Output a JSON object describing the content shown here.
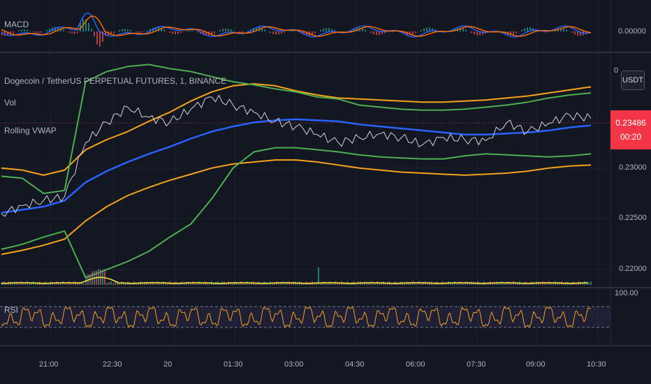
{
  "symbol_title": "Dogecoin / TetherUS PERPETUAL FUTURES, 1, BINANCE",
  "unit_button": "USDT",
  "macd_pane": {
    "label": "MACD",
    "value": "0.00000"
  },
  "price_scale_top_label": "0",
  "indicators": {
    "vol_label": "Vol",
    "vwap_label": "Rolling VWAP"
  },
  "price_tag": {
    "price": "0.23486",
    "countdown": "00:20"
  },
  "rsi_pane": {
    "label": "RSI",
    "top_value": "100.00"
  },
  "colors": {
    "background": "#131722",
    "grid": "#1e222d",
    "vwap": "#2962ff",
    "band_orange": "#f7a21b",
    "band_green": "#4caf50",
    "rsi": "#f7a21b",
    "macd_line": "#2962ff",
    "signal_line": "#ff6d00",
    "price_tag": "#f23645",
    "volume_line": "#ffeb3b"
  },
  "chart_data": {
    "type": "line",
    "title": "Dogecoin / TetherUS PERPETUAL FUTURES, 1, BINANCE",
    "xlabel": "",
    "ylabel": "",
    "x_ticks": [
      "21:00",
      "22:30",
      "20",
      "01:30",
      "03:00",
      "04:30",
      "06:00",
      "07:30",
      "09:00",
      "10:30"
    ],
    "y_ticks": [
      0.23,
      0.225,
      0.22
    ],
    "y_tick_labels": [
      "0.23000",
      "0.22500",
      "0.22000"
    ],
    "ylim": [
      0.2185,
      0.2405
    ],
    "x_sample_hours": [
      0,
      0.5,
      1,
      1.5,
      2,
      2.5,
      3,
      3.5,
      4,
      4.5,
      5,
      5.5,
      6,
      6.5,
      7,
      7.5,
      8,
      8.5,
      9,
      9.5,
      10,
      10.5,
      11,
      11.5,
      12,
      12.5,
      13,
      13.5,
      14
    ],
    "series": [
      {
        "name": "Rolling VWAP",
        "color": "#2962ff",
        "values": [
          0.2256,
          0.2259,
          0.2262,
          0.2268,
          0.2286,
          0.2297,
          0.2306,
          0.2314,
          0.2321,
          0.2329,
          0.2336,
          0.2341,
          0.2345,
          0.2347,
          0.2348,
          0.2347,
          0.2346,
          0.2343,
          0.2341,
          0.2339,
          0.2337,
          0.2335,
          0.2333,
          0.2333,
          0.2334,
          0.2335,
          0.2337,
          0.234,
          0.2342
        ]
      },
      {
        "color": "#f7a21b",
        "values": [
          0.23,
          0.2298,
          0.2293,
          0.2298,
          0.2318,
          0.2328,
          0.2336,
          0.2346,
          0.2355,
          0.2366,
          0.2375,
          0.2381,
          0.2383,
          0.2381,
          0.2376,
          0.2372,
          0.2369,
          0.2368,
          0.2367,
          0.2366,
          0.2365,
          0.2365,
          0.2366,
          0.2367,
          0.2369,
          0.2371,
          0.2374,
          0.2377,
          0.238
        ]
      },
      {
        "color": "#f7a21b",
        "values": [
          0.2215,
          0.2219,
          0.2224,
          0.223,
          0.2248,
          0.2262,
          0.2273,
          0.2281,
          0.2288,
          0.2294,
          0.23,
          0.2304,
          0.2306,
          0.2308,
          0.2308,
          0.2306,
          0.2303,
          0.23,
          0.2298,
          0.2296,
          0.2295,
          0.2294,
          0.2293,
          0.2294,
          0.2295,
          0.2297,
          0.23,
          0.2302,
          0.2303
        ]
      },
      {
        "color": "#4caf50",
        "values": [
          0.2292,
          0.229,
          0.2275,
          0.2278,
          0.2385,
          0.2395,
          0.24,
          0.2402,
          0.2398,
          0.2395,
          0.239,
          0.2385,
          0.2382,
          0.2378,
          0.2375,
          0.237,
          0.2368,
          0.2362,
          0.236,
          0.2358,
          0.2357,
          0.2357,
          0.2358,
          0.236,
          0.2362,
          0.2365,
          0.2369,
          0.2372,
          0.2374
        ]
      },
      {
        "color": "#4caf50",
        "values": [
          0.222,
          0.2225,
          0.2232,
          0.2238,
          0.2192,
          0.22,
          0.2208,
          0.2218,
          0.2232,
          0.2245,
          0.227,
          0.23,
          0.2316,
          0.232,
          0.232,
          0.2318,
          0.2316,
          0.2313,
          0.2311,
          0.231,
          0.2309,
          0.2309,
          0.2312,
          0.2314,
          0.2313,
          0.2312,
          0.2311,
          0.2312,
          0.2314
        ]
      },
      {
        "name": "price",
        "color": "#d1d4dc",
        "values": [
          0.2255,
          0.2263,
          0.2268,
          0.2272,
          0.2325,
          0.2345,
          0.236,
          0.235,
          0.2345,
          0.2358,
          0.237,
          0.2362,
          0.2355,
          0.2346,
          0.2341,
          0.2333,
          0.2325,
          0.233,
          0.2334,
          0.233,
          0.2323,
          0.233,
          0.2328,
          0.2327,
          0.2345,
          0.2336,
          0.2344,
          0.2352,
          0.2349
        ]
      }
    ]
  }
}
